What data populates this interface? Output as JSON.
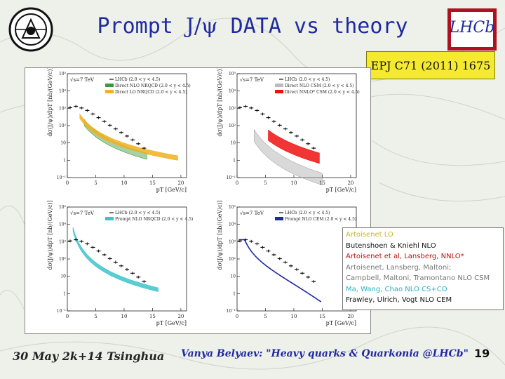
{
  "slide": {
    "title_part1": "Prompt ",
    "title_psi": "J/ψ",
    "title_part2": " DATA vs theory",
    "logo_text": "LHCb",
    "reference": "EPJ C71 (2011) 1675",
    "footer_left": "30 May 2k+14 Tsinghua",
    "footer_mid": "Vanya Belyaev: \"Heavy quarks & Quarkonia @LHCb\"",
    "page_number": "19"
  },
  "legend_overlay": [
    {
      "text": "Artoisenet   LO",
      "color": "#c9b81a"
    },
    {
      "text": "Butenshoen & Kniehl NLO",
      "color": "#111111"
    },
    {
      "text": "Artoisenet et al, Lansberg, NNLO*",
      "color": "#c01010"
    },
    {
      "text": "Artoisenet, Lansberg, Maltoni;",
      "color": "#777777"
    },
    {
      "text": "Campbell, Maltoni, Tramontano NLO CSM",
      "color": "#777777"
    },
    {
      "text": "Ma, Wang, Chao NLO CS+CO",
      "color": "#2ab0c0"
    },
    {
      "text": "Frawley, Ulrich, Vogt  NLO CEM",
      "color": "#111111"
    }
  ],
  "panels": [
    {
      "energy": "√s=7 TeV",
      "data_label": "LHCb (2.0 < y < 4.5)",
      "legend": [
        {
          "label": "Direct NLO NRQCD (2.0 < y < 4.5)",
          "color": "#3a9a3a"
        },
        {
          "label": "Direct LO NRQCD (2.0 < y < 4.5)",
          "color": "#f0b020"
        }
      ]
    },
    {
      "energy": "√s=7 TeV",
      "data_label": "LHCb (2.0 < y < 4.5)",
      "legend": [
        {
          "label": "Direct NLO CSM (2.0 < y < 4.5)",
          "color": "#bbbbbb"
        },
        {
          "label": "Direct NNLO* CSM (2.0 < y < 4.5)",
          "color": "#ee1010"
        }
      ]
    },
    {
      "energy": "√s=7 TeV",
      "data_label": "LHCb (2.0 < y < 4.5)",
      "legend": [
        {
          "label": "Prompt NLO NRQCD (2.0 < y < 4.5)",
          "color": "#3cc4cc"
        }
      ]
    },
    {
      "energy": "√s=7 TeV",
      "data_label": "LHCb (2.0 < y < 4.5)",
      "legend": [
        {
          "label": "Prompt NLO CEM (2.0 < y < 4.5)",
          "color": "#1a2aa0"
        }
      ]
    }
  ],
  "axes": {
    "ylabel": "dσ(J/ψ)/dpT [nb/(GeV/c)]",
    "xlabel": "pT [GeV/c]",
    "x_ticks": [
      "0",
      "5",
      "10",
      "15",
      "20"
    ],
    "y_ticks_top": [
      "10⁻¹",
      "1",
      "10",
      "10²",
      "10³",
      "10⁴",
      "10⁵"
    ],
    "y_ticks_bottom": [
      "10⁻¹",
      "1",
      "10",
      "10²",
      "10³",
      "10⁴",
      "10⁵"
    ]
  },
  "chart_data": [
    {
      "type": "scatter",
      "title": "",
      "xlabel": "pT [GeV/c]",
      "ylabel": "dσ(J/ψ)/dpT [nb/(GeV/c)]",
      "y_scale": "log",
      "xlim": [
        0,
        21
      ],
      "ylim": [
        0.1,
        100000
      ],
      "series": [
        {
          "name": "LHCb (2.0 < y < 4.5)",
          "x": [
            0.5,
            1.5,
            2.5,
            3.5,
            4.5,
            5.5,
            6.5,
            7.5,
            8.5,
            9.5,
            10.5,
            11.5,
            12.5,
            13.5
          ],
          "y": [
            1100,
            1300,
            1050,
            750,
            470,
            290,
            175,
            105,
            65,
            40,
            25,
            15,
            9,
            5
          ]
        }
      ]
    },
    {
      "type": "scatter",
      "title": "",
      "xlabel": "pT [GeV/c]",
      "ylabel": "dσ(J/ψ)/dpT [nb/(GeV/c)]",
      "y_scale": "log",
      "xlim": [
        0,
        21
      ],
      "ylim": [
        0.1,
        100000
      ],
      "series": [
        {
          "name": "LHCb (2.0 < y < 4.5)",
          "x": [
            0.5,
            1.5,
            2.5,
            3.5,
            4.5,
            5.5,
            6.5,
            7.5,
            8.5,
            9.5,
            10.5,
            11.5,
            12.5,
            13.5
          ],
          "y": [
            1100,
            1300,
            1050,
            750,
            470,
            290,
            175,
            105,
            65,
            40,
            25,
            15,
            9,
            5
          ]
        }
      ]
    },
    {
      "type": "scatter",
      "title": "",
      "xlabel": "pT [GeV/c]",
      "ylabel": "dσ(J/ψ)/dpT [nb/(GeV/c)]",
      "y_scale": "log",
      "xlim": [
        0,
        21
      ],
      "ylim": [
        0.1,
        100000
      ],
      "series": [
        {
          "name": "LHCb (2.0 < y < 4.5)",
          "x": [
            0.5,
            1.5,
            2.5,
            3.5,
            4.5,
            5.5,
            6.5,
            7.5,
            8.5,
            9.5,
            10.5,
            11.5,
            12.5,
            13.5
          ],
          "y": [
            1100,
            1300,
            1050,
            750,
            470,
            290,
            175,
            105,
            65,
            40,
            25,
            15,
            9,
            5
          ]
        }
      ]
    },
    {
      "type": "scatter",
      "title": "",
      "xlabel": "pT [GeV/c]",
      "ylabel": "dσ(J/ψ)/dpT [nb/(GeV/c)]",
      "y_scale": "log",
      "xlim": [
        0,
        21
      ],
      "ylim": [
        0.1,
        100000
      ],
      "series": [
        {
          "name": "LHCb (2.0 < y < 4.5)",
          "x": [
            0.5,
            1.5,
            2.5,
            3.5,
            4.5,
            5.5,
            6.5,
            7.5,
            8.5,
            9.5,
            10.5,
            11.5,
            12.5,
            13.5
          ],
          "y": [
            1100,
            1300,
            1050,
            750,
            470,
            290,
            175,
            105,
            65,
            40,
            25,
            15,
            9,
            5
          ]
        }
      ]
    }
  ]
}
